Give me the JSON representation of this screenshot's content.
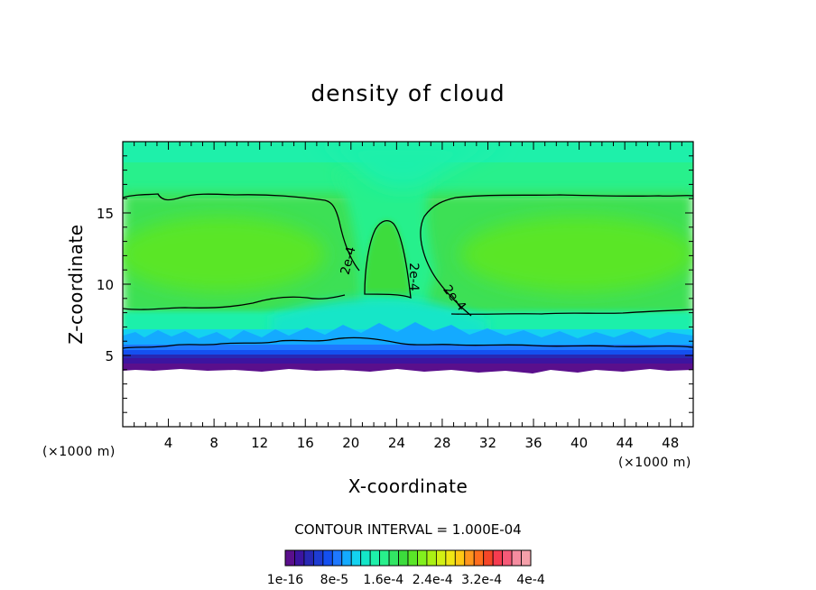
{
  "chart_data": {
    "type": "heatmap",
    "title": "density of cloud",
    "xlabel": "X-coordinate",
    "ylabel": "Z-coordinate",
    "x_unit_label": "(×1000 m)",
    "z_unit_label": "(×1000 m)",
    "xlim": [
      0,
      50
    ],
    "ylim": [
      0,
      20
    ],
    "x_ticks": [
      4,
      8,
      12,
      16,
      20,
      24,
      28,
      32,
      36,
      40,
      44,
      48
    ],
    "y_ticks": [
      5,
      10,
      15
    ],
    "contour_interval_text": "CONTOUR INTERVAL = 1.000E-04",
    "contour_level": 0.0002,
    "contour_labels": [
      "2e-4",
      "2e-4",
      "2e-4"
    ],
    "colorbar": {
      "tick_labels": [
        "1e-16",
        "8e-5",
        "1.6e-4",
        "2.4e-4",
        "3.2e-4",
        "4e-4"
      ],
      "tick_values": [
        1e-16,
        8e-05,
        0.00016,
        0.00024,
        0.00032,
        0.0004
      ],
      "colors": [
        "#5a0f8c",
        "#3c14a0",
        "#2828b4",
        "#1e3cd2",
        "#1450f0",
        "#1e78ff",
        "#14aaff",
        "#14d2f0",
        "#14e6c8",
        "#1ef0aa",
        "#28f08c",
        "#32e664",
        "#3cdc3c",
        "#5ae628",
        "#82f01e",
        "#aaf014",
        "#d2f014",
        "#f0e614",
        "#ffc814",
        "#ff961e",
        "#ff6e1e",
        "#f54628",
        "#f53c50",
        "#f55a78",
        "#f58ca0",
        "#f5a0aa"
      ]
    },
    "structure": {
      "no_cloud_below_z": 4,
      "cloud_base_z": 4.5,
      "anvil_top_z": 16,
      "anvil_bottom_z": 8.3,
      "clear_gap_x": [
        19.5,
        27.5
      ],
      "tower_x": [
        21,
        25
      ],
      "tower_top_z": 14.5,
      "peak_density_left_center": [
        9,
        12
      ],
      "peak_density_right_center": [
        38,
        12
      ]
    }
  }
}
